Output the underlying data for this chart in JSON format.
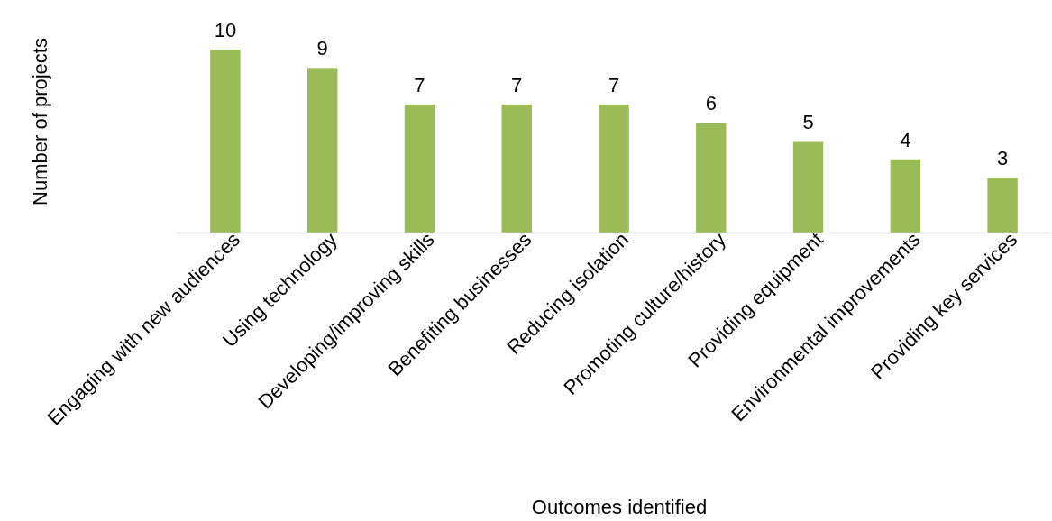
{
  "chart_data": {
    "type": "bar",
    "xlabel": "Outcomes identified",
    "ylabel": "Number of projects",
    "categories": [
      "Engaging with new audiences",
      "Using technology",
      "Developing/improving skills",
      "Benefiting businesses",
      "Reducing isolation",
      "Promoting culture/history",
      "Providing equipment",
      "Environmental improvements",
      "Providing key services"
    ],
    "values": [
      10,
      9,
      7,
      7,
      7,
      6,
      5,
      4,
      3
    ],
    "color": "#9bbb59",
    "data_labels": true,
    "tick_labels": "x"
  }
}
